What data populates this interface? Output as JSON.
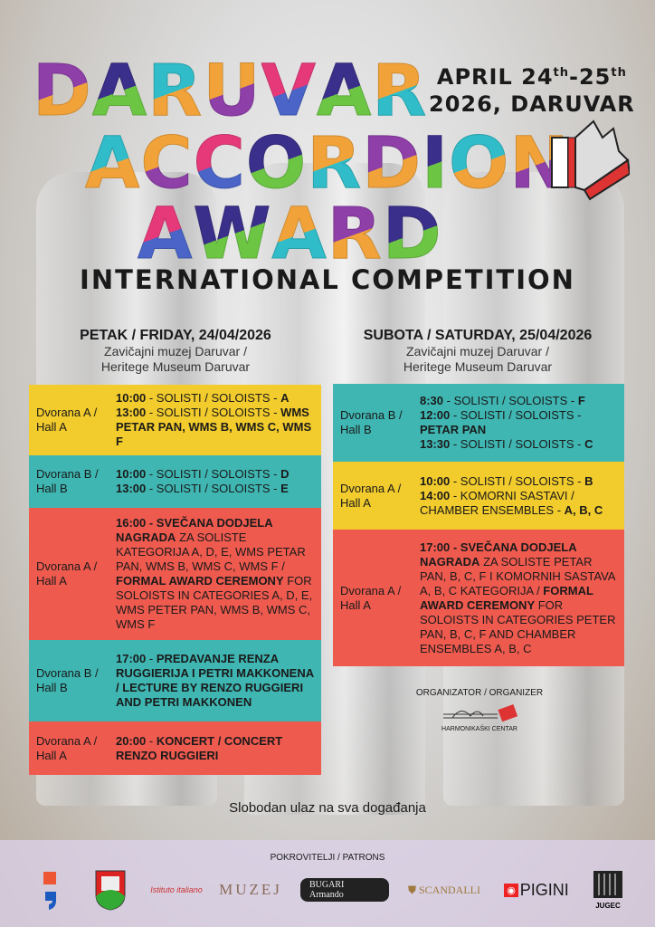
{
  "header": {
    "title_lines": [
      "DARUVAR",
      "ACCORDION",
      "AWARD"
    ],
    "date_line1": "APRIL 24",
    "sup1": "th",
    "dash": "-25",
    "sup2": "th",
    "date_line2": "2026, DARUVAR",
    "subtitle": "INTERNATIONAL COMPETITION"
  },
  "colors": {
    "yellow": "#f2cb2c",
    "teal": "#3fb6b2",
    "red": "#ef5a4f"
  },
  "friday": {
    "day": "PETAK / FRIDAY, 24/04/2026",
    "venue1": "Zavičajni muzej Daruvar /",
    "venue2": "Heritege Museum Daruvar",
    "slots": [
      {
        "hall": "Dvorana A / Hall A",
        "color": "yellow",
        "items": [
          [
            [
              "10:00",
              1
            ],
            [
              " - SOLISTI / SOLOISTS - ",
              0
            ],
            [
              "A",
              1
            ]
          ],
          [
            [
              "13:00",
              1
            ],
            [
              " - SOLISTI / SOLOISTS - ",
              0
            ],
            [
              "WMS PETAR PAN, WMS B, WMS C, WMS F",
              1
            ]
          ]
        ]
      },
      {
        "hall": "Dvorana B / Hall B",
        "color": "teal",
        "items": [
          [
            [
              "10:00",
              1
            ],
            [
              " - SOLISTI / SOLOISTS - ",
              0
            ],
            [
              "D",
              1
            ]
          ],
          [
            [
              "13:00",
              1
            ],
            [
              " - SOLISTI / SOLOISTS - ",
              0
            ],
            [
              "E",
              1
            ]
          ]
        ]
      },
      {
        "hall": "Dvorana A / Hall A",
        "color": "red",
        "items": [
          [
            [
              "16:00 - SVEČANA DODJELA NAGRADA",
              1
            ],
            [
              " ZA SOLISTE KATEGORIJA A, D, E, WMS PETAR PAN, WMS B, WMS C, WMS F / ",
              0
            ],
            [
              "FORMAL AWARD CEREMONY",
              1
            ],
            [
              " FOR SOLOISTS IN CATEGORIES A, D, E, WMS PETER PAN, WMS B, WMS C, WMS F",
              0
            ]
          ]
        ]
      },
      {
        "hall": "Dvorana B / Hall B",
        "color": "teal",
        "items": [
          [
            [
              "17:00",
              1
            ],
            [
              " - ",
              0
            ],
            [
              "PREDAVANJE RENZA RUGGIERIJA I PETRI MAKKONENA / LECTURE BY RENZO RUGGIERI AND PETRI MAKKONEN",
              1
            ]
          ]
        ]
      },
      {
        "hall": "Dvorana A / Hall A",
        "color": "red",
        "items": [
          [
            [
              "20:00",
              1
            ],
            [
              " - ",
              0
            ],
            [
              "KONCERT / CONCERT RENZO RUGGIERI",
              1
            ]
          ]
        ]
      }
    ]
  },
  "saturday": {
    "day": "SUBOTA / SATURDAY, 25/04/2026",
    "venue1": "Zavičajni muzej Daruvar /",
    "venue2": "Heritege Museum Daruvar",
    "slots": [
      {
        "hall": "Dvorana B / Hall B",
        "color": "teal",
        "items": [
          [
            [
              "8:30",
              1
            ],
            [
              " - SOLISTI / SOLOISTS - ",
              0
            ],
            [
              "F",
              1
            ]
          ],
          [
            [
              "12:00",
              1
            ],
            [
              " - SOLISTI / SOLOISTS - ",
              0
            ],
            [
              "PETAR PAN",
              1
            ]
          ],
          [
            [
              "13:30",
              1
            ],
            [
              " - SOLISTI / SOLOISTS - ",
              0
            ],
            [
              "C",
              1
            ]
          ]
        ]
      },
      {
        "hall": "Dvorana A / Hall A",
        "color": "yellow",
        "items": [
          [
            [
              "10:00",
              1
            ],
            [
              " - SOLISTI / SOLOISTS - ",
              0
            ],
            [
              "B",
              1
            ]
          ],
          [
            [
              "14:00",
              1
            ],
            [
              " - KOMORNI SASTAVI / CHAMBER ENSEMBLES - ",
              0
            ],
            [
              "A, B, C",
              1
            ]
          ]
        ]
      },
      {
        "hall": "Dvorana A / Hall A",
        "color": "red",
        "items": [
          [
            [
              "17:00 - SVEČANA DODJELA NAGRADA",
              1
            ],
            [
              " ZA SOLISTE PETAR PAN, B, C, F I KOMORNIH SASTAVA A, B, C KATEGORIJA / ",
              0
            ],
            [
              "FORMAL AWARD CEREMONY",
              1
            ],
            [
              " FOR SOLOISTS IN CATEGORIES PETER PAN, B, C, F AND CHAMBER ENSEMBLES A, B, C",
              0
            ]
          ]
        ]
      }
    ]
  },
  "organizer": {
    "label": "ORGANIZATOR / ORGANIZER",
    "name": "HARMONIKAŠKI CENTAR"
  },
  "free_entry": "Slobodan ulaz na sva događanja",
  "patrons": {
    "label": "POKROVITELJI / PATRONS",
    "logos": [
      "Republika Hrvatska Ministarstvo kulture",
      "Daruvar coat of arms",
      "Istituto Italiano di Cultura",
      "MUZEJ",
      "BUGARI Armando",
      "SCANDALLI",
      "PIGINI",
      "JUGEC"
    ]
  }
}
